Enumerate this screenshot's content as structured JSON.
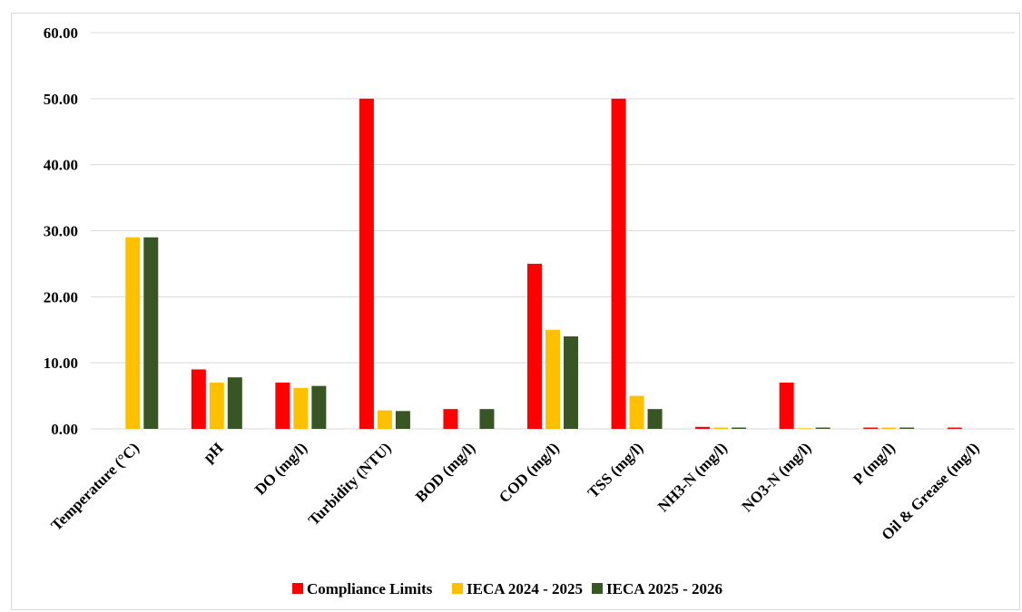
{
  "chart_data": {
    "type": "bar",
    "categories": [
      "Temperature (°C)",
      "pH",
      "DO (mg/l)",
      "Turbidity (NTU)",
      "BOD (mg/l)",
      "COD (mg/l)",
      "TSS (mg/l)",
      "NH3-N (mg/l)",
      "NO3-N (mg/l)",
      "P (mg/l)",
      "Oil & Grease (mg/l)"
    ],
    "series": [
      {
        "name": "Compliance Limits",
        "color": "#ff0000",
        "values": [
          0,
          9,
          7,
          50,
          3,
          25,
          50,
          0.3,
          7,
          0.2,
          0.2
        ]
      },
      {
        "name": "IECA 2024 - 2025",
        "color": "#ffc000",
        "values": [
          29,
          7,
          6.2,
          2.8,
          0,
          15,
          5,
          0.2,
          0.1,
          0.2,
          0
        ]
      },
      {
        "name": "IECA 2025 - 2026",
        "color": "#375623",
        "values": [
          29,
          7.8,
          6.5,
          2.7,
          3,
          14,
          3,
          0.2,
          0.2,
          0.2,
          0
        ]
      }
    ],
    "ylim": [
      0,
      60
    ],
    "yticks": [
      "0.00",
      "10.00",
      "20.00",
      "30.00",
      "40.00",
      "50.00",
      "60.00"
    ],
    "title": "",
    "xlabel": "",
    "ylabel": "",
    "grid": true,
    "legend_position": "bottom"
  }
}
